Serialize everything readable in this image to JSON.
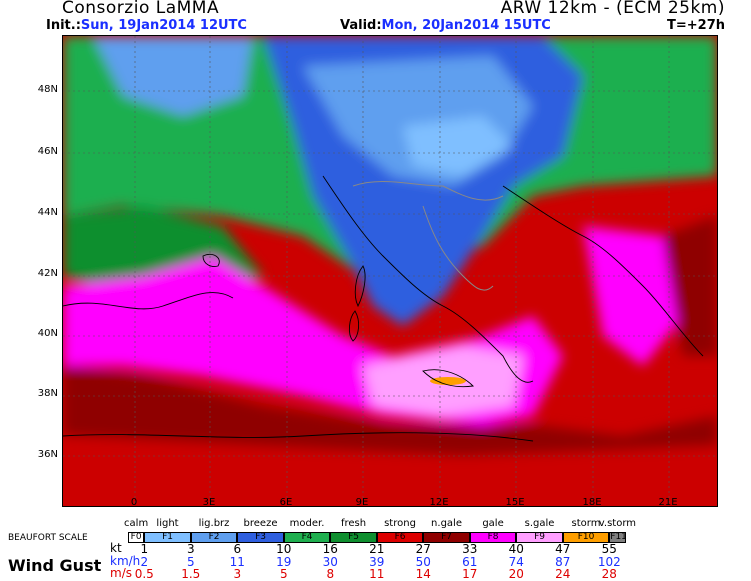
{
  "header": {
    "org": "Consorzio LaMMA",
    "model": "ARW 12km - (ECM 25km)",
    "init_label": "Init.:",
    "init_value": "Sun, 19Jan2014 12UTC",
    "valid_label": "Valid:",
    "valid_value": "Mon, 20Jan2014 15UTC",
    "forecast_step": "T=+27h"
  },
  "map": {
    "latitude_labels": [
      "48N",
      "46N",
      "44N",
      "42N",
      "40N",
      "38N",
      "36N"
    ],
    "longitude_labels": [
      "0",
      "3E",
      "6E",
      "9E",
      "12E",
      "15E",
      "18E",
      "21E"
    ]
  },
  "legend": {
    "title": "BEAUFORT SCALE",
    "names": [
      "calm",
      "light",
      "lig.brz",
      "breeze",
      "moder.",
      "fresh",
      "strong",
      "n.gale",
      "gale",
      "s.gale",
      "storm",
      "v.storm"
    ],
    "codes": [
      "F0",
      "F1",
      "F2",
      "F3",
      "F4",
      "F5",
      "F6",
      "F7",
      "F8",
      "F9",
      "F10",
      "F11"
    ],
    "colors": [
      "#ffffff",
      "#7fbfff",
      "#5f9fef",
      "#2f5fdf",
      "#1faf4f",
      "#0f8f2f",
      "#dd0000",
      "#8f0000",
      "#ff00ff",
      "#ff9fff",
      "#ff9f00",
      "#808080"
    ],
    "variable": "Wind Gust",
    "kt_label": "kt",
    "kmh_label": "km/h",
    "ms_label": "m/s",
    "kt": [
      "1",
      "3",
      "6",
      "10",
      "16",
      "21",
      "27",
      "33",
      "40",
      "47",
      "55"
    ],
    "kmh": [
      "2",
      "5",
      "11",
      "19",
      "30",
      "39",
      "50",
      "61",
      "74",
      "87",
      "102"
    ],
    "ms": [
      "0.5",
      "1.5",
      "3",
      "5",
      "8",
      "11",
      "14",
      "17",
      "20",
      "24",
      "28"
    ]
  }
}
